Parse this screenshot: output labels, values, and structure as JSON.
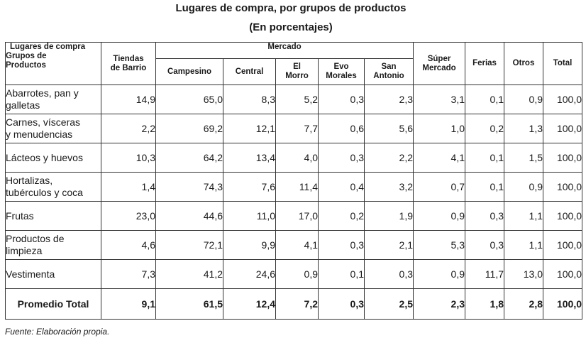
{
  "title": "Lugares de compra, por grupos de productos",
  "subtitle": "(En porcentajes)",
  "header": {
    "corner_line1": "Lugares de compra",
    "corner_line2": "Grupos de",
    "corner_line3": "Productos",
    "tiendas_line1": "Tiendas",
    "tiendas_line2": "de Barrio",
    "mercado": "Mercado",
    "campesino": "Campesino",
    "central": "Central",
    "el_morro_line1": "El",
    "el_morro_line2": "Morro",
    "evo_line1": "Evo",
    "evo_line2": "Morales",
    "san_antonio_line1": "San",
    "san_antonio_line2": "Antonio",
    "super_line1": "Súper",
    "super_line2": "Mercado",
    "ferias": "Ferias",
    "otros": "Otros",
    "total": "Total"
  },
  "rows": [
    {
      "line1": "Abarrotes, pan y",
      "line2": "galletas",
      "values": [
        "14,9",
        "65,0",
        "8,3",
        "5,2",
        "0,3",
        "2,3",
        "3,1",
        "0,1",
        "0,9",
        "100,0"
      ]
    },
    {
      "line1": "Carnes, vísceras",
      "line2": "y menudencias",
      "values": [
        "2,2",
        "69,2",
        "12,1",
        "7,7",
        "0,6",
        "5,6",
        "1,0",
        "0,2",
        "1,3",
        "100,0"
      ]
    },
    {
      "line1": "Lácteos y huevos",
      "line2": "",
      "values": [
        "10,3",
        "64,2",
        "13,4",
        "4,0",
        "0,3",
        "2,2",
        "4,1",
        "0,1",
        "1,5",
        "100,0"
      ]
    },
    {
      "line1": "Hortalizas,",
      "line2": "tubérculos y coca",
      "values": [
        "1,4",
        "74,3",
        "7,6",
        "11,4",
        "0,4",
        "3,2",
        "0,7",
        "0,1",
        "0,9",
        "100,0"
      ]
    },
    {
      "line1": "Frutas",
      "line2": "",
      "values": [
        "23,0",
        "44,6",
        "11,0",
        "17,0",
        "0,2",
        "1,9",
        "0,9",
        "0,3",
        "1,1",
        "100,0"
      ]
    },
    {
      "line1": "Productos de",
      "line2": "limpieza",
      "values": [
        "4,6",
        "72,1",
        "9,9",
        "4,1",
        "0,3",
        "2,1",
        "5,3",
        "0,3",
        "1,1",
        "100,0"
      ]
    },
    {
      "line1": "Vestimenta",
      "line2": "",
      "values": [
        "7,3",
        "41,2",
        "24,6",
        "0,9",
        "0,1",
        "0,3",
        "0,9",
        "11,7",
        "13,0",
        "100,0"
      ]
    }
  ],
  "total_row": {
    "label": "Promedio Total",
    "values": [
      "9,1",
      "61,5",
      "12,4",
      "7,2",
      "0,3",
      "2,5",
      "2,3",
      "1,8",
      "2,8",
      "100,0"
    ]
  },
  "source": "Fuente: Elaboración propia."
}
